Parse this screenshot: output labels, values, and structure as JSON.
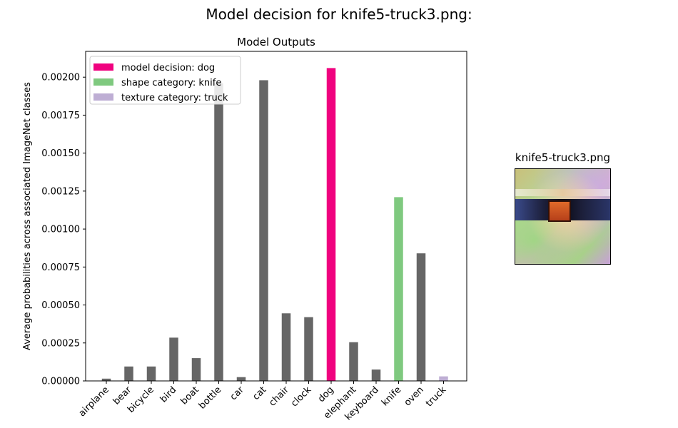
{
  "figure_title": "Model decision for knife5-truck3.png:",
  "image_panel": {
    "title": "knife5-truck3.png"
  },
  "chart_data": {
    "type": "bar",
    "title": "Model Outputs",
    "xlabel": "",
    "ylabel": "Average probabilities across associated ImageNet classes",
    "categories": [
      "airplane",
      "bear",
      "bicycle",
      "bird",
      "boat",
      "bottle",
      "car",
      "cat",
      "chair",
      "clock",
      "dog",
      "elephant",
      "keyboard",
      "knife",
      "oven",
      "truck"
    ],
    "values": [
      1.5e-05,
      9.5e-05,
      9.5e-05,
      0.000285,
      0.00015,
      0.00196,
      2.5e-05,
      0.00198,
      0.000445,
      0.00042,
      0.00206,
      0.000255,
      7.5e-05,
      0.00121,
      0.00084,
      3e-05
    ],
    "bar_colors": [
      "#666666",
      "#666666",
      "#666666",
      "#666666",
      "#666666",
      "#666666",
      "#666666",
      "#666666",
      "#666666",
      "#666666",
      "#f0027f",
      "#666666",
      "#666666",
      "#7fc97f",
      "#666666",
      "#beaed4"
    ],
    "ylim": [
      0,
      0.00217
    ],
    "yticks": [
      "0.00000",
      "0.00025",
      "0.00050",
      "0.00075",
      "0.00100",
      "0.00125",
      "0.00150",
      "0.00175",
      "0.00200"
    ],
    "ytick_values": [
      0,
      0.00025,
      0.0005,
      0.00075,
      0.001,
      0.00125,
      0.0015,
      0.00175,
      0.002
    ],
    "grid": false,
    "legend": {
      "placement": "top-left",
      "entries": [
        {
          "label": "model decision: dog",
          "color": "#f0027f"
        },
        {
          "label": "shape category: knife",
          "color": "#7fc97f"
        },
        {
          "label": "texture category: truck",
          "color": "#beaed4"
        }
      ]
    }
  }
}
